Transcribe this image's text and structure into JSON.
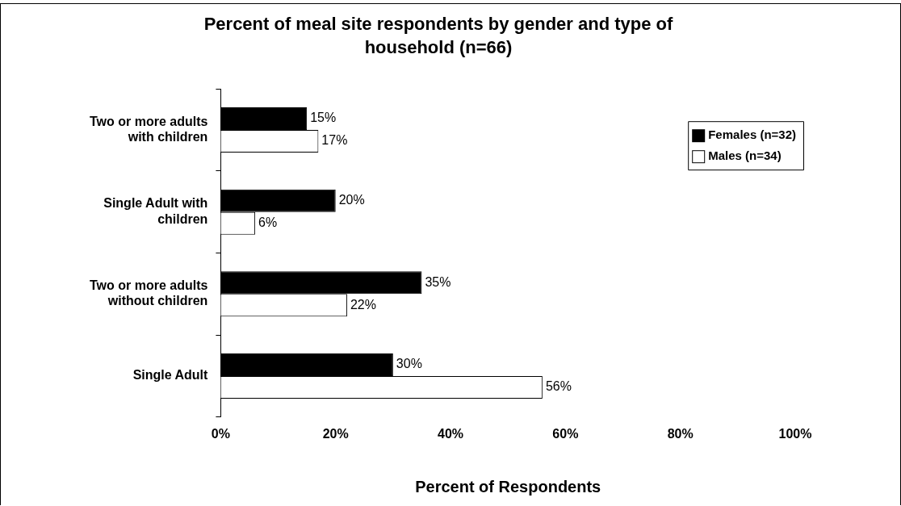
{
  "chart_data": {
    "type": "bar",
    "orientation": "horizontal",
    "title": "Percent of meal site respondents by gender and type of household (n=66)",
    "xlabel": "Percent of Respondents",
    "categories": [
      "Two or more adults with children",
      "Single Adult with children",
      "Two or more adults without children",
      "Single Adult"
    ],
    "series": [
      {
        "name": "Females (n=32)",
        "color": "#000000",
        "values": [
          15,
          20,
          35,
          30
        ],
        "value_labels": [
          "15%",
          "20%",
          "35%",
          "30%"
        ]
      },
      {
        "name": "Males (n=34)",
        "color": "#ffffff",
        "values": [
          17,
          6,
          22,
          56
        ],
        "value_labels": [
          "17%",
          "6%",
          "22%",
          "56%"
        ]
      }
    ],
    "xlim": [
      0,
      100
    ],
    "xticks": [
      {
        "value": 0,
        "label": "0%"
      },
      {
        "value": 20,
        "label": "20%"
      },
      {
        "value": 40,
        "label": "40%"
      },
      {
        "value": 60,
        "label": "60%"
      },
      {
        "value": 80,
        "label": "80%"
      },
      {
        "value": 100,
        "label": "100%"
      }
    ],
    "grid": false,
    "legend": "top right"
  }
}
